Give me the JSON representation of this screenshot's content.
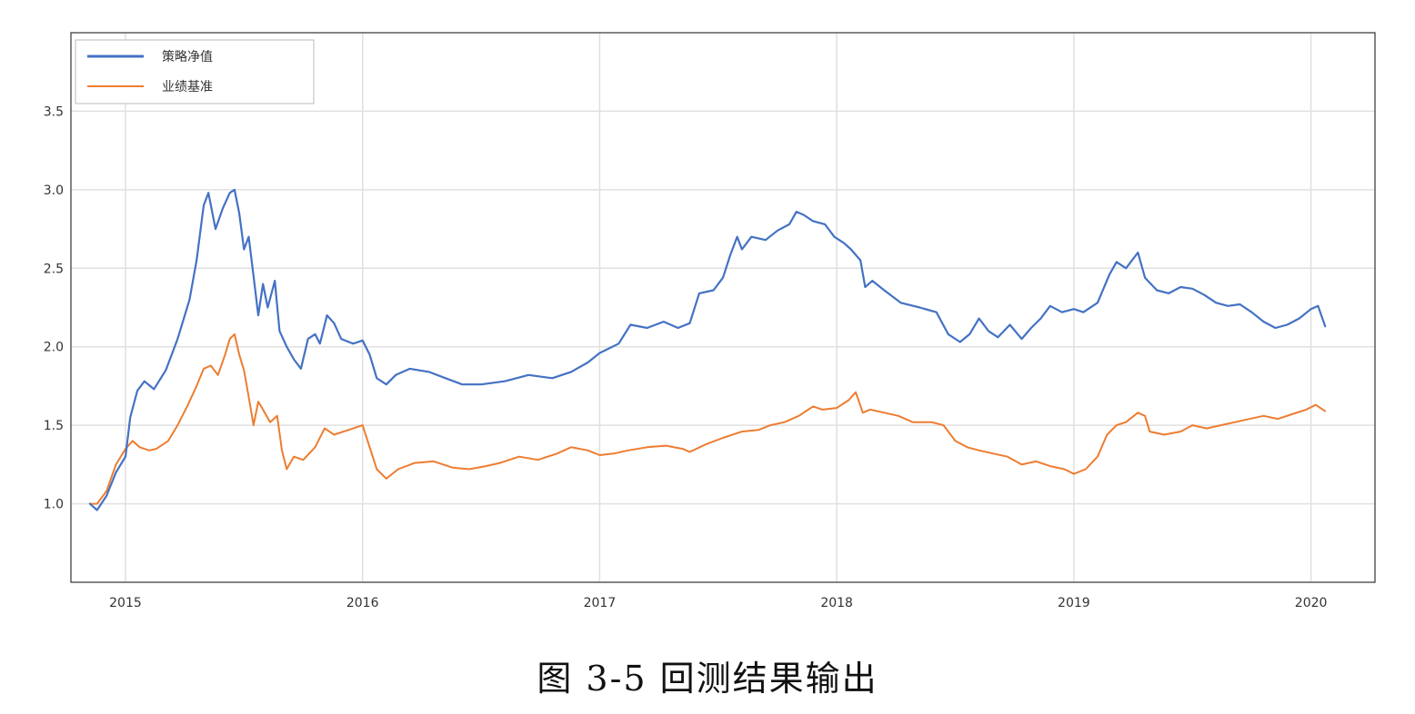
{
  "caption": "图 3-5 回测结果输出",
  "chart_data": {
    "type": "line",
    "title": "",
    "xlabel": "",
    "ylabel": "",
    "xlim": [
      2014.77,
      2020.27
    ],
    "ylim": [
      0.5,
      4.0
    ],
    "x_ticks": [
      {
        "label": "2015",
        "x": 2015.0
      },
      {
        "label": "2016",
        "x": 2016.0
      },
      {
        "label": "2017",
        "x": 2017.0
      },
      {
        "label": "2018",
        "x": 2018.0
      },
      {
        "label": "2019",
        "x": 2019.0
      },
      {
        "label": "2020",
        "x": 2020.0
      }
    ],
    "y_ticks": [
      {
        "label": "1.0",
        "y": 1.0
      },
      {
        "label": "1.5",
        "y": 1.5
      },
      {
        "label": "2.0",
        "y": 2.0
      },
      {
        "label": "2.5",
        "y": 2.5
      },
      {
        "label": "3.0",
        "y": 3.0
      },
      {
        "label": "3.5",
        "y": 3.5
      }
    ],
    "grid": true,
    "legend_position": "top-left",
    "series": [
      {
        "name": "策略净值",
        "color": "#4472c4",
        "points": [
          [
            2014.85,
            1.0
          ],
          [
            2014.88,
            0.96
          ],
          [
            2014.92,
            1.05
          ],
          [
            2014.96,
            1.2
          ],
          [
            2015.0,
            1.3
          ],
          [
            2015.02,
            1.55
          ],
          [
            2015.05,
            1.72
          ],
          [
            2015.08,
            1.78
          ],
          [
            2015.12,
            1.73
          ],
          [
            2015.17,
            1.85
          ],
          [
            2015.22,
            2.05
          ],
          [
            2015.27,
            2.3
          ],
          [
            2015.3,
            2.55
          ],
          [
            2015.33,
            2.9
          ],
          [
            2015.35,
            2.98
          ],
          [
            2015.38,
            2.75
          ],
          [
            2015.41,
            2.88
          ],
          [
            2015.44,
            2.98
          ],
          [
            2015.46,
            3.0
          ],
          [
            2015.48,
            2.85
          ],
          [
            2015.5,
            2.62
          ],
          [
            2015.52,
            2.7
          ],
          [
            2015.54,
            2.45
          ],
          [
            2015.56,
            2.2
          ],
          [
            2015.58,
            2.4
          ],
          [
            2015.6,
            2.25
          ],
          [
            2015.63,
            2.42
          ],
          [
            2015.65,
            2.1
          ],
          [
            2015.68,
            2.0
          ],
          [
            2015.71,
            1.92
          ],
          [
            2015.74,
            1.86
          ],
          [
            2015.77,
            2.05
          ],
          [
            2015.8,
            2.08
          ],
          [
            2015.82,
            2.02
          ],
          [
            2015.85,
            2.2
          ],
          [
            2015.88,
            2.15
          ],
          [
            2015.91,
            2.05
          ],
          [
            2015.96,
            2.02
          ],
          [
            2016.0,
            2.04
          ],
          [
            2016.03,
            1.95
          ],
          [
            2016.06,
            1.8
          ],
          [
            2016.1,
            1.76
          ],
          [
            2016.14,
            1.82
          ],
          [
            2016.2,
            1.86
          ],
          [
            2016.28,
            1.84
          ],
          [
            2016.35,
            1.8
          ],
          [
            2016.42,
            1.76
          ],
          [
            2016.5,
            1.76
          ],
          [
            2016.6,
            1.78
          ],
          [
            2016.7,
            1.82
          ],
          [
            2016.8,
            1.8
          ],
          [
            2016.88,
            1.84
          ],
          [
            2016.95,
            1.9
          ],
          [
            2017.0,
            1.96
          ],
          [
            2017.08,
            2.02
          ],
          [
            2017.13,
            2.14
          ],
          [
            2017.2,
            2.12
          ],
          [
            2017.27,
            2.16
          ],
          [
            2017.33,
            2.12
          ],
          [
            2017.38,
            2.15
          ],
          [
            2017.42,
            2.34
          ],
          [
            2017.48,
            2.36
          ],
          [
            2017.52,
            2.44
          ],
          [
            2017.55,
            2.58
          ],
          [
            2017.58,
            2.7
          ],
          [
            2017.6,
            2.62
          ],
          [
            2017.64,
            2.7
          ],
          [
            2017.7,
            2.68
          ],
          [
            2017.75,
            2.74
          ],
          [
            2017.8,
            2.78
          ],
          [
            2017.83,
            2.86
          ],
          [
            2017.86,
            2.84
          ],
          [
            2017.9,
            2.8
          ],
          [
            2017.95,
            2.78
          ],
          [
            2017.99,
            2.7
          ],
          [
            2018.03,
            2.66
          ],
          [
            2018.06,
            2.62
          ],
          [
            2018.1,
            2.55
          ],
          [
            2018.12,
            2.38
          ],
          [
            2018.15,
            2.42
          ],
          [
            2018.2,
            2.36
          ],
          [
            2018.27,
            2.28
          ],
          [
            2018.35,
            2.25
          ],
          [
            2018.42,
            2.22
          ],
          [
            2018.47,
            2.08
          ],
          [
            2018.52,
            2.03
          ],
          [
            2018.56,
            2.08
          ],
          [
            2018.6,
            2.18
          ],
          [
            2018.64,
            2.1
          ],
          [
            2018.68,
            2.06
          ],
          [
            2018.73,
            2.14
          ],
          [
            2018.78,
            2.05
          ],
          [
            2018.82,
            2.12
          ],
          [
            2018.86,
            2.18
          ],
          [
            2018.9,
            2.26
          ],
          [
            2018.95,
            2.22
          ],
          [
            2019.0,
            2.24
          ],
          [
            2019.04,
            2.22
          ],
          [
            2019.1,
            2.28
          ],
          [
            2019.15,
            2.46
          ],
          [
            2019.18,
            2.54
          ],
          [
            2019.22,
            2.5
          ],
          [
            2019.27,
            2.6
          ],
          [
            2019.3,
            2.44
          ],
          [
            2019.35,
            2.36
          ],
          [
            2019.4,
            2.34
          ],
          [
            2019.45,
            2.38
          ],
          [
            2019.5,
            2.37
          ],
          [
            2019.55,
            2.33
          ],
          [
            2019.6,
            2.28
          ],
          [
            2019.65,
            2.26
          ],
          [
            2019.7,
            2.27
          ],
          [
            2019.75,
            2.22
          ],
          [
            2019.8,
            2.16
          ],
          [
            2019.85,
            2.12
          ],
          [
            2019.9,
            2.14
          ],
          [
            2019.95,
            2.18
          ],
          [
            2020.0,
            2.24
          ],
          [
            2020.03,
            2.26
          ],
          [
            2020.06,
            2.13
          ]
        ]
      },
      {
        "name": "业绩基准",
        "color": "#ed7d31",
        "points": [
          [
            2014.85,
            1.0
          ],
          [
            2014.88,
            1.0
          ],
          [
            2014.92,
            1.08
          ],
          [
            2014.96,
            1.25
          ],
          [
            2015.0,
            1.35
          ],
          [
            2015.03,
            1.4
          ],
          [
            2015.06,
            1.36
          ],
          [
            2015.1,
            1.34
          ],
          [
            2015.13,
            1.35
          ],
          [
            2015.18,
            1.4
          ],
          [
            2015.22,
            1.5
          ],
          [
            2015.26,
            1.62
          ],
          [
            2015.3,
            1.75
          ],
          [
            2015.33,
            1.86
          ],
          [
            2015.36,
            1.88
          ],
          [
            2015.39,
            1.82
          ],
          [
            2015.42,
            1.95
          ],
          [
            2015.44,
            2.05
          ],
          [
            2015.46,
            2.08
          ],
          [
            2015.48,
            1.95
          ],
          [
            2015.5,
            1.85
          ],
          [
            2015.52,
            1.68
          ],
          [
            2015.54,
            1.5
          ],
          [
            2015.56,
            1.65
          ],
          [
            2015.58,
            1.6
          ],
          [
            2015.61,
            1.52
          ],
          [
            2015.64,
            1.56
          ],
          [
            2015.66,
            1.34
          ],
          [
            2015.68,
            1.22
          ],
          [
            2015.71,
            1.3
          ],
          [
            2015.75,
            1.28
          ],
          [
            2015.8,
            1.36
          ],
          [
            2015.84,
            1.48
          ],
          [
            2015.88,
            1.44
          ],
          [
            2015.92,
            1.46
          ],
          [
            2016.0,
            1.5
          ],
          [
            2016.03,
            1.36
          ],
          [
            2016.06,
            1.22
          ],
          [
            2016.1,
            1.16
          ],
          [
            2016.15,
            1.22
          ],
          [
            2016.22,
            1.26
          ],
          [
            2016.3,
            1.27
          ],
          [
            2016.38,
            1.23
          ],
          [
            2016.45,
            1.22
          ],
          [
            2016.52,
            1.24
          ],
          [
            2016.58,
            1.26
          ],
          [
            2016.66,
            1.3
          ],
          [
            2016.74,
            1.28
          ],
          [
            2016.82,
            1.32
          ],
          [
            2016.88,
            1.36
          ],
          [
            2016.95,
            1.34
          ],
          [
            2017.0,
            1.31
          ],
          [
            2017.06,
            1.32
          ],
          [
            2017.12,
            1.34
          ],
          [
            2017.2,
            1.36
          ],
          [
            2017.28,
            1.37
          ],
          [
            2017.35,
            1.35
          ],
          [
            2017.38,
            1.33
          ],
          [
            2017.45,
            1.38
          ],
          [
            2017.52,
            1.42
          ],
          [
            2017.6,
            1.46
          ],
          [
            2017.67,
            1.47
          ],
          [
            2017.72,
            1.5
          ],
          [
            2017.78,
            1.52
          ],
          [
            2017.84,
            1.56
          ],
          [
            2017.9,
            1.62
          ],
          [
            2017.94,
            1.6
          ],
          [
            2018.0,
            1.61
          ],
          [
            2018.05,
            1.66
          ],
          [
            2018.08,
            1.71
          ],
          [
            2018.11,
            1.58
          ],
          [
            2018.14,
            1.6
          ],
          [
            2018.2,
            1.58
          ],
          [
            2018.26,
            1.56
          ],
          [
            2018.32,
            1.52
          ],
          [
            2018.4,
            1.52
          ],
          [
            2018.45,
            1.5
          ],
          [
            2018.5,
            1.4
          ],
          [
            2018.55,
            1.36
          ],
          [
            2018.6,
            1.34
          ],
          [
            2018.66,
            1.32
          ],
          [
            2018.72,
            1.3
          ],
          [
            2018.78,
            1.25
          ],
          [
            2018.84,
            1.27
          ],
          [
            2018.9,
            1.24
          ],
          [
            2018.96,
            1.22
          ],
          [
            2019.0,
            1.19
          ],
          [
            2019.05,
            1.22
          ],
          [
            2019.1,
            1.3
          ],
          [
            2019.14,
            1.44
          ],
          [
            2019.18,
            1.5
          ],
          [
            2019.22,
            1.52
          ],
          [
            2019.27,
            1.58
          ],
          [
            2019.3,
            1.56
          ],
          [
            2019.32,
            1.46
          ],
          [
            2019.38,
            1.44
          ],
          [
            2019.45,
            1.46
          ],
          [
            2019.5,
            1.5
          ],
          [
            2019.56,
            1.48
          ],
          [
            2019.62,
            1.5
          ],
          [
            2019.68,
            1.52
          ],
          [
            2019.74,
            1.54
          ],
          [
            2019.8,
            1.56
          ],
          [
            2019.86,
            1.54
          ],
          [
            2019.92,
            1.57
          ],
          [
            2019.98,
            1.6
          ],
          [
            2020.02,
            1.63
          ],
          [
            2020.06,
            1.59
          ]
        ]
      }
    ]
  }
}
